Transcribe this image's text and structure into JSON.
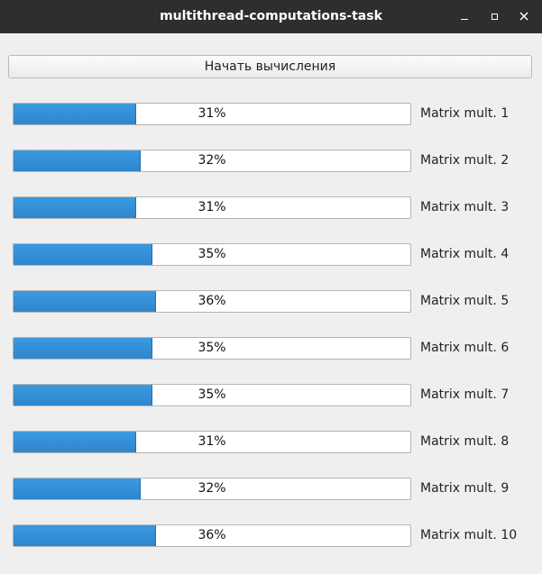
{
  "window": {
    "title": "multithread-computations-task",
    "controls": [
      "minimize-icon",
      "maximize-icon",
      "close-icon"
    ]
  },
  "start_button": {
    "label": "Начать вычисления"
  },
  "tasks": [
    {
      "label": "Matrix mult. 1",
      "progress_text": "31%",
      "progress": 31
    },
    {
      "label": "Matrix mult. 2",
      "progress_text": "32%",
      "progress": 32
    },
    {
      "label": "Matrix mult. 3",
      "progress_text": "31%",
      "progress": 31
    },
    {
      "label": "Matrix mult. 4",
      "progress_text": "35%",
      "progress": 35
    },
    {
      "label": "Matrix mult. 5",
      "progress_text": "36%",
      "progress": 36
    },
    {
      "label": "Matrix mult. 6",
      "progress_text": "35%",
      "progress": 35
    },
    {
      "label": "Matrix mult. 7",
      "progress_text": "35%",
      "progress": 35
    },
    {
      "label": "Matrix mult. 8",
      "progress_text": "31%",
      "progress": 31
    },
    {
      "label": "Matrix mult. 9",
      "progress_text": "32%",
      "progress": 32
    },
    {
      "label": "Matrix mult. 10",
      "progress_text": "36%",
      "progress": 36
    }
  ],
  "colors": {
    "titlebar": "#2e2e2e",
    "window_bg": "#efefef",
    "progress_fill": "#2f86cd"
  }
}
